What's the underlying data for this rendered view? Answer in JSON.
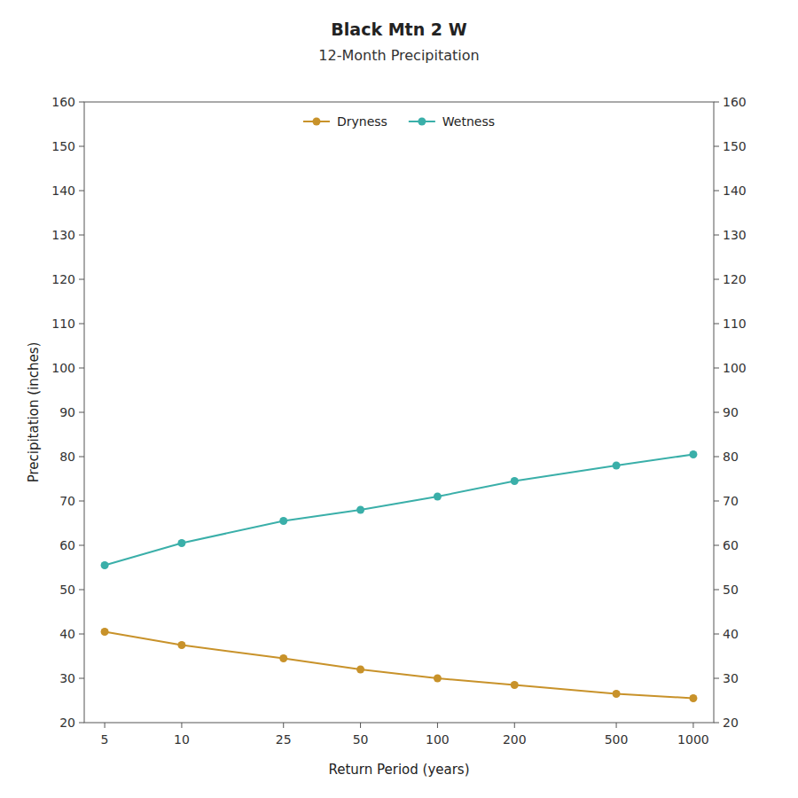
{
  "chart_data": {
    "type": "line",
    "title": "Black Mtn 2 W",
    "subtitle": "12-Month Precipitation",
    "x_label": "Return Period (years)",
    "y_label": "Precipitation (inches)",
    "x": [
      5,
      10,
      25,
      50,
      100,
      200,
      500,
      1000
    ],
    "series": [
      {
        "name": "Dryness",
        "color": "#C8922A",
        "marker": "circle",
        "line_style": "solid",
        "values": [
          40.5,
          37.5,
          34.5,
          32.0,
          30.0,
          28.5,
          26.5,
          25.5
        ]
      },
      {
        "name": "Wetness",
        "color": "#3AAFA9",
        "marker": "circle",
        "line_style": "solid",
        "values": [
          55.5,
          60.5,
          65.5,
          68.0,
          71.0,
          74.5,
          78.0,
          80.5
        ]
      }
    ],
    "log": "x",
    "xlim": [
      4.158819,
      1202.264435
    ],
    "xticks": [
      5,
      10,
      25,
      50,
      100,
      200,
      500,
      1000
    ],
    "ylim": [
      20,
      160
    ],
    "yticks": [
      20,
      30,
      40,
      50,
      60,
      70,
      80,
      90,
      100,
      110,
      120,
      130,
      140,
      150,
      160
    ],
    "y2lim": [
      20,
      160
    ],
    "y2ticks": [
      20,
      30,
      40,
      50,
      60,
      70,
      80,
      90,
      100,
      110,
      120,
      130,
      140,
      150,
      160
    ],
    "grid": false,
    "legend": "top"
  }
}
